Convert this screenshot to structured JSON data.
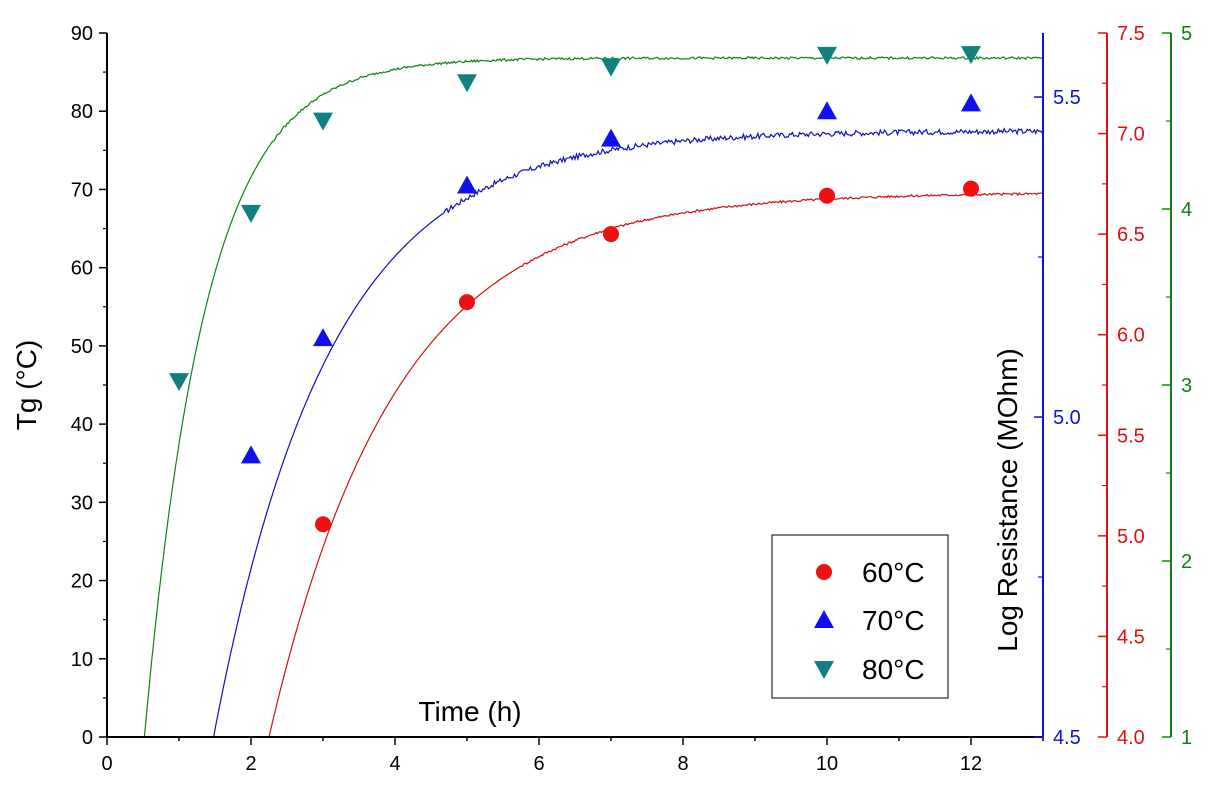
{
  "chart_data": {
    "type": "scatter",
    "title": "",
    "xlabel": "Time (h)",
    "ylabel": "Tg (°C)",
    "ylabel_right": "Log Resistance (MOhm)",
    "xlim": [
      0,
      13
    ],
    "ylim": [
      0,
      90
    ],
    "x_ticks": [
      0,
      2,
      4,
      6,
      8,
      10,
      12
    ],
    "y_ticks": [
      0,
      10,
      20,
      30,
      40,
      50,
      60,
      70,
      80,
      90
    ],
    "right_axes": [
      {
        "name": "blue",
        "color": "#1010dd",
        "range": [
          4.5,
          5.6
        ],
        "ticks": [
          "4.5",
          "5.0",
          "5.5"
        ]
      },
      {
        "name": "red",
        "color": "#e01010",
        "range": [
          4.0,
          7.5
        ],
        "ticks": [
          "4.0",
          "4.5",
          "5.0",
          "5.5",
          "6.0",
          "6.5",
          "7.0",
          "7.5"
        ]
      },
      {
        "name": "green",
        "color": "#108010",
        "range": [
          1,
          5
        ],
        "ticks": [
          "1",
          "2",
          "3",
          "4",
          "5"
        ]
      }
    ],
    "grid": false,
    "legend_position": "bottom-right",
    "series": [
      {
        "name": "60°C",
        "marker": "circle",
        "color": "#ee1111",
        "x": [
          3,
          5,
          7,
          10,
          12
        ],
        "y": [
          27.2,
          55.6,
          64.3,
          69.2,
          70.1
        ]
      },
      {
        "name": "70°C",
        "marker": "triangle-up",
        "color": "#1010ee",
        "x": [
          2,
          3,
          5,
          7,
          10,
          12
        ],
        "y": [
          36.0,
          51.0,
          70.5,
          76.5,
          80.0,
          81.0
        ]
      },
      {
        "name": "80°C",
        "marker": "triangle-down",
        "color": "#118080",
        "x": [
          1,
          2,
          3,
          5,
          7,
          10,
          12
        ],
        "y": [
          45.5,
          67.0,
          78.8,
          83.7,
          85.7,
          87.2,
          87.3
        ]
      }
    ],
    "curves": [
      {
        "color": "#1010c0",
        "axis": "blue",
        "x0": 1.48,
        "plateau": 77.5,
        "tau": 1.6,
        "noise": 0.35
      },
      {
        "color": "#d01010",
        "axis": "red",
        "x0": 2.25,
        "plateau": 69.6,
        "tau": 1.75,
        "noise": 0.15
      },
      {
        "color": "#108010",
        "axis": "green",
        "x0": 0.52,
        "plateau": 86.8,
        "tau": 0.85,
        "noise": 0.15
      }
    ]
  }
}
